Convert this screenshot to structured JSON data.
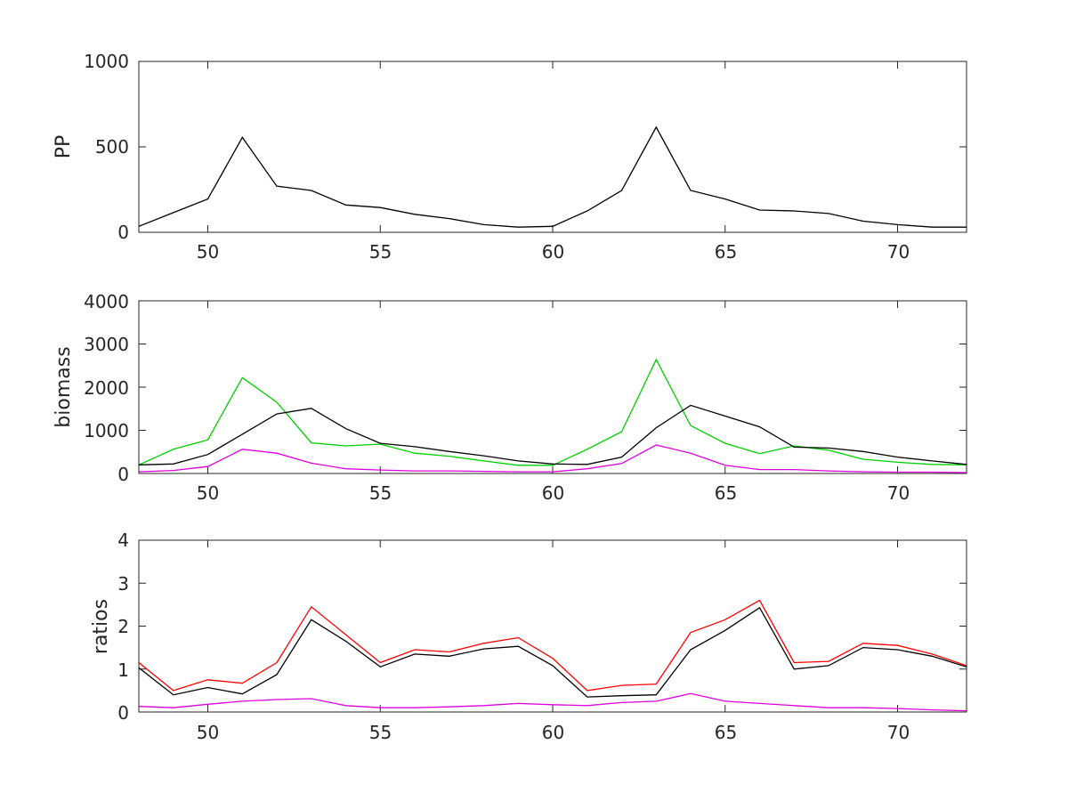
{
  "chart_data": [
    {
      "type": "line",
      "ylabel": "PP",
      "xlim": [
        48,
        72
      ],
      "ylim": [
        0,
        1000
      ],
      "xticks": [
        "50",
        "55",
        "60",
        "65",
        "70"
      ],
      "yticks": [
        "0",
        "500",
        "1000"
      ],
      "x": [
        48,
        49,
        50,
        51,
        52,
        53,
        54,
        55,
        56,
        57,
        58,
        59,
        60,
        61,
        62,
        63,
        64,
        65,
        66,
        67,
        68,
        69,
        70,
        71,
        72
      ],
      "series": [
        {
          "color": "#000000",
          "values": [
            35,
            115,
            195,
            555,
            270,
            245,
            160,
            145,
            105,
            80,
            45,
            30,
            35,
            125,
            245,
            615,
            245,
            195,
            130,
            125,
            110,
            65,
            45,
            30,
            30
          ]
        }
      ]
    },
    {
      "type": "line",
      "ylabel": "biomass",
      "xlim": [
        48,
        72
      ],
      "ylim": [
        0,
        4000
      ],
      "xticks": [
        "50",
        "55",
        "60",
        "65",
        "70"
      ],
      "yticks": [
        "0",
        "1000",
        "2000",
        "3000",
        "4000"
      ],
      "x": [
        48,
        49,
        50,
        51,
        52,
        53,
        54,
        55,
        56,
        57,
        58,
        59,
        60,
        61,
        62,
        63,
        64,
        65,
        66,
        67,
        68,
        69,
        70,
        71,
        72
      ],
      "series": [
        {
          "color": "#00d000",
          "values": [
            200,
            560,
            780,
            2220,
            1650,
            710,
            640,
            680,
            470,
            400,
            290,
            190,
            190,
            560,
            970,
            2640,
            1110,
            700,
            460,
            640,
            540,
            330,
            260,
            210,
            200
          ]
        },
        {
          "color": "#000000",
          "values": [
            200,
            220,
            440,
            910,
            1380,
            1510,
            1040,
            700,
            620,
            510,
            410,
            290,
            220,
            210,
            380,
            1060,
            1580,
            1330,
            1080,
            610,
            590,
            510,
            380,
            290,
            210
          ]
        },
        {
          "color": "#dd00dd",
          "values": [
            40,
            70,
            160,
            560,
            470,
            240,
            110,
            80,
            60,
            60,
            50,
            40,
            40,
            110,
            230,
            660,
            470,
            190,
            90,
            90,
            60,
            40,
            30,
            30,
            20
          ]
        }
      ]
    },
    {
      "type": "line",
      "ylabel": "ratios",
      "xlim": [
        48,
        72
      ],
      "ylim": [
        0,
        4
      ],
      "xticks": [
        "50",
        "55",
        "60",
        "65",
        "70"
      ],
      "yticks": [
        "0",
        "1",
        "2",
        "3",
        "4"
      ],
      "x": [
        48,
        49,
        50,
        51,
        52,
        53,
        54,
        55,
        56,
        57,
        58,
        59,
        60,
        61,
        62,
        63,
        64,
        65,
        66,
        67,
        68,
        69,
        70,
        71,
        72
      ],
      "series": [
        {
          "color": "#ff0000",
          "values": [
            1.15,
            0.5,
            0.75,
            0.67,
            1.15,
            2.45,
            1.8,
            1.15,
            1.45,
            1.4,
            1.6,
            1.73,
            1.25,
            0.5,
            0.62,
            0.65,
            1.85,
            2.15,
            2.6,
            1.15,
            1.18,
            1.6,
            1.55,
            1.35,
            1.08
          ]
        },
        {
          "color": "#000000",
          "values": [
            1.03,
            0.4,
            0.57,
            0.42,
            0.87,
            2.15,
            1.65,
            1.05,
            1.35,
            1.3,
            1.47,
            1.53,
            1.08,
            0.35,
            0.38,
            0.4,
            1.45,
            1.9,
            2.43,
            1.0,
            1.08,
            1.5,
            1.45,
            1.3,
            1.05
          ]
        },
        {
          "color": "#dd00dd",
          "values": [
            0.13,
            0.1,
            0.18,
            0.25,
            0.29,
            0.31,
            0.15,
            0.1,
            0.1,
            0.12,
            0.15,
            0.2,
            0.17,
            0.15,
            0.22,
            0.25,
            0.43,
            0.25,
            0.2,
            0.15,
            0.1,
            0.1,
            0.08,
            0.05,
            0.03
          ]
        }
      ]
    }
  ]
}
